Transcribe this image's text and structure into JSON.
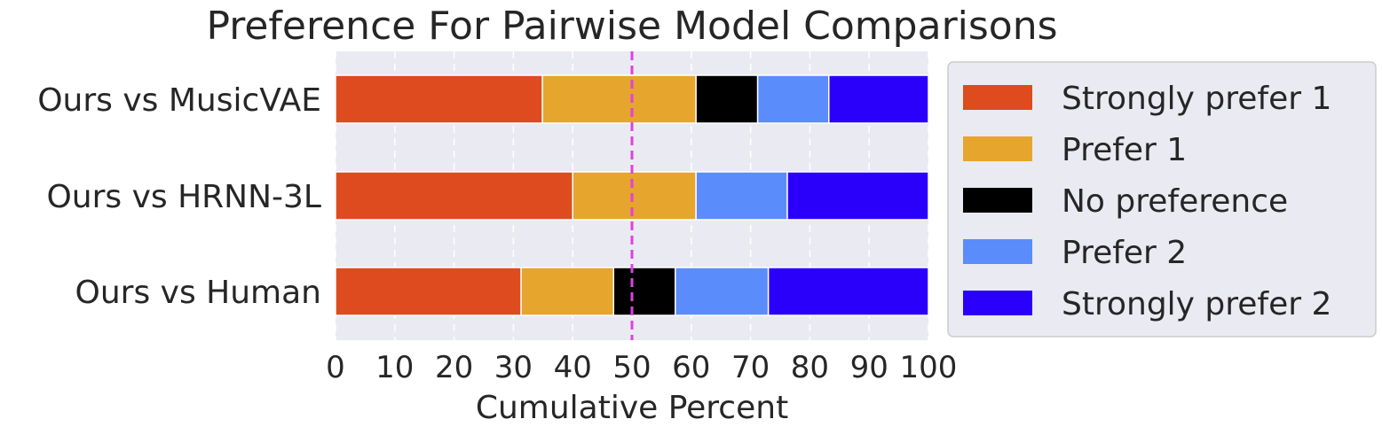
{
  "chart_data": {
    "type": "bar",
    "orientation": "horizontal",
    "stacked": true,
    "title": "Preference For Pairwise Model Comparisons",
    "xlabel": "Cumulative Percent",
    "ylabel": "",
    "xlim": [
      0,
      100
    ],
    "xticks": [
      0,
      10,
      20,
      30,
      40,
      50,
      60,
      70,
      80,
      90,
      100
    ],
    "categories": [
      "Ours vs MusicVAE",
      "Ours vs HRNN-3L",
      "Ours vs Human"
    ],
    "series": [
      {
        "name": "Strongly prefer 1",
        "color": "#dd4b1f",
        "values": [
          34.9,
          40.0,
          31.3
        ]
      },
      {
        "name": "Prefer 1",
        "color": "#e6a52c",
        "values": [
          25.9,
          20.8,
          15.6
        ]
      },
      {
        "name": "No preference",
        "color": "#000000",
        "values": [
          10.4,
          0.0,
          10.4
        ]
      },
      {
        "name": "Prefer 2",
        "color": "#5b8cfb",
        "values": [
          12.0,
          15.4,
          15.7
        ]
      },
      {
        "name": "Strongly prefer 2",
        "color": "#2b00fb",
        "values": [
          16.8,
          23.8,
          27.0
        ]
      }
    ],
    "reference_line": {
      "x": 50,
      "color": "#e040e0",
      "style": "dashed"
    },
    "grid": true,
    "legend_position": "right",
    "background": "#eaeaf2"
  }
}
